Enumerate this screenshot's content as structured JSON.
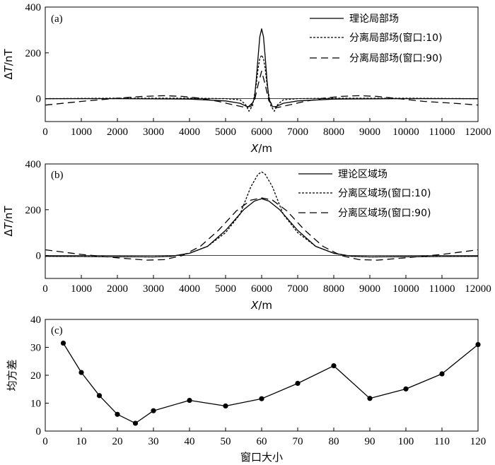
{
  "chart_data": [
    {
      "type": "line",
      "panel_label": "(a)",
      "ylabel_prefix": "Δ",
      "ylabel_var": "T",
      "ylabel_unit": "/nT",
      "xlabel_var": "X",
      "xlabel_unit": "/m",
      "xlim": [
        0,
        12000
      ],
      "ylim": [
        -100,
        400
      ],
      "xticks": [
        "0",
        "1000",
        "2000",
        "3000",
        "4000",
        "5000",
        "6000",
        "7000",
        "8000",
        "9000",
        "10000",
        "11000",
        "12000"
      ],
      "yticks": [
        "0",
        "200",
        "400"
      ],
      "legend_position": "top-right",
      "series": [
        {
          "name": "理论局部场",
          "style": "solid",
          "x": [
            0,
            2000,
            4000,
            5000,
            5400,
            5600,
            5700,
            5800,
            5850,
            5900,
            5950,
            6000,
            6050,
            6100,
            6150,
            6200,
            6300,
            6400,
            6600,
            7000,
            8000,
            10000,
            12000
          ],
          "y": [
            0,
            0,
            -2,
            -10,
            -20,
            -35,
            -35,
            0,
            80,
            180,
            270,
            305,
            270,
            180,
            80,
            0,
            -35,
            -35,
            -20,
            -10,
            -2,
            0,
            0
          ]
        },
        {
          "name": "分离局部场(窗口:10)",
          "style": "dotted",
          "x": [
            0,
            2000,
            4000,
            5000,
            5400,
            5550,
            5650,
            5750,
            5850,
            5900,
            5950,
            6000,
            6050,
            6100,
            6150,
            6250,
            6350,
            6450,
            6600,
            7000,
            8000,
            10000,
            12000
          ],
          "y": [
            0,
            2,
            2,
            0,
            -5,
            -25,
            -55,
            -30,
            60,
            130,
            175,
            190,
            175,
            130,
            60,
            -30,
            -55,
            -25,
            -5,
            0,
            2,
            2,
            0
          ]
        },
        {
          "name": "分离局部场(窗口:90)",
          "style": "dashed",
          "x": [
            0,
            1000,
            2000,
            2700,
            3300,
            3800,
            4300,
            4800,
            5300,
            5600,
            5800,
            5900,
            6000,
            6100,
            6200,
            6400,
            6700,
            7200,
            7700,
            8200,
            8700,
            9200,
            9700,
            10500,
            11500,
            12000
          ],
          "y": [
            -28,
            -12,
            2,
            10,
            13,
            10,
            2,
            -12,
            -30,
            -40,
            -10,
            60,
            120,
            60,
            -10,
            -40,
            -30,
            -12,
            2,
            10,
            13,
            10,
            2,
            -12,
            -22,
            -28
          ]
        }
      ]
    },
    {
      "type": "line",
      "panel_label": "(b)",
      "ylabel_prefix": "Δ",
      "ylabel_var": "T",
      "ylabel_unit": "/nT",
      "xlabel_var": "X",
      "xlabel_unit": "/m",
      "xlim": [
        0,
        12000
      ],
      "ylim": [
        -100,
        400
      ],
      "xticks": [
        "0",
        "1000",
        "2000",
        "3000",
        "4000",
        "5000",
        "6000",
        "7000",
        "8000",
        "9000",
        "10000",
        "11000",
        "12000"
      ],
      "yticks": [
        "0",
        "200",
        "400"
      ],
      "legend_position": "top-right",
      "series": [
        {
          "name": "理论区域场",
          "style": "solid",
          "x": [
            0,
            1000,
            2000,
            3000,
            3500,
            4000,
            4500,
            5000,
            5500,
            5800,
            6000,
            6200,
            6500,
            7000,
            7500,
            8000,
            8500,
            9000,
            10000,
            11000,
            12000
          ],
          "y": [
            -3,
            -4,
            -5,
            -6,
            -3,
            10,
            40,
            110,
            200,
            238,
            248,
            238,
            200,
            110,
            40,
            10,
            -3,
            -6,
            -5,
            -4,
            -3
          ]
        },
        {
          "name": "分离区域场(窗口:10)",
          "style": "dotted",
          "x": [
            0,
            1000,
            2000,
            3000,
            3500,
            4000,
            4500,
            5000,
            5400,
            5700,
            5900,
            6000,
            6100,
            6300,
            6600,
            7000,
            7500,
            8000,
            8500,
            9000,
            10000,
            11000,
            12000
          ],
          "y": [
            -3,
            -4,
            -5,
            -6,
            -3,
            10,
            40,
            100,
            180,
            300,
            355,
            365,
            355,
            300,
            180,
            100,
            40,
            10,
            -3,
            -6,
            -5,
            -4,
            -3
          ]
        },
        {
          "name": "分离区域场(窗口:90)",
          "style": "dashed",
          "x": [
            0,
            1000,
            2000,
            2800,
            3300,
            3800,
            4300,
            4800,
            5300,
            5700,
            6000,
            6300,
            6700,
            7200,
            7700,
            8200,
            8700,
            9200,
            10000,
            11000,
            12000
          ],
          "y": [
            25,
            5,
            -10,
            -20,
            -18,
            0,
            40,
            110,
            195,
            242,
            252,
            242,
            195,
            110,
            40,
            0,
            -18,
            -20,
            -10,
            5,
            25
          ]
        }
      ]
    },
    {
      "type": "line",
      "panel_label": "(c)",
      "ylabel": "均方差",
      "xlabel": "窗口大小",
      "xlim": [
        0,
        120
      ],
      "ylim": [
        0,
        40
      ],
      "xticks": [
        "0",
        "10",
        "20",
        "30",
        "40",
        "50",
        "60",
        "70",
        "80",
        "90",
        "100",
        "110",
        "120"
      ],
      "yticks": [
        "0",
        "10",
        "20",
        "30",
        "40"
      ],
      "markers": "filled-circle",
      "series": [
        {
          "name": "均方差",
          "x": [
            5,
            10,
            15,
            20,
            25,
            30,
            40,
            50,
            60,
            70,
            80,
            90,
            100,
            110,
            120
          ],
          "y": [
            31.5,
            21,
            12.7,
            6,
            2.8,
            7.3,
            11,
            9,
            11.6,
            17.1,
            23.4,
            11.7,
            15.1,
            20.5,
            31
          ]
        }
      ]
    }
  ]
}
